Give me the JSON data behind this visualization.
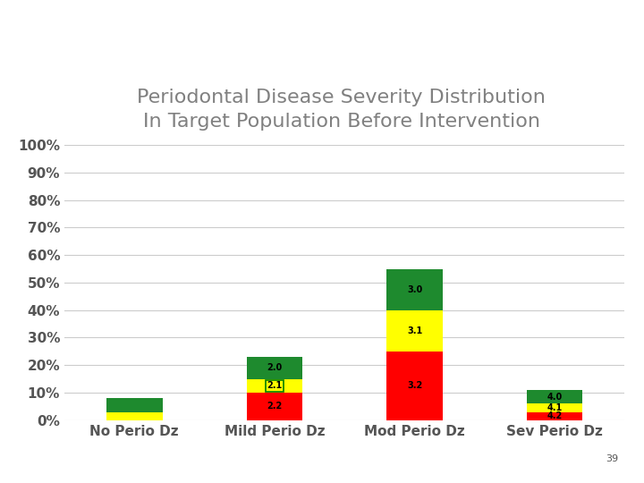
{
  "title": "Periodontal Disease Severity Distribution\nIn Target Population Before Intervention",
  "categories": [
    "No Perio Dz",
    "Mild Perio Dz",
    "Mod Perio Dz",
    "Sev Perio Dz"
  ],
  "segments": {
    "red": [
      0,
      10.0,
      25.0,
      3.0
    ],
    "yellow": [
      3.0,
      5.0,
      15.0,
      3.0
    ],
    "green": [
      5.0,
      8.0,
      15.0,
      5.0
    ]
  },
  "labels": {
    "red": [
      "",
      "2.2",
      "3.2",
      "4.2"
    ],
    "yellow": [
      "",
      "2.1",
      "3.1",
      "4.1"
    ],
    "green": [
      "",
      "2.0",
      "3.0",
      "4.0"
    ]
  },
  "colors": {
    "red": "#FF0000",
    "yellow": "#FFFF00",
    "green": "#1E8A2E"
  },
  "ylim": [
    0,
    100
  ],
  "yticks": [
    0,
    10,
    20,
    30,
    40,
    50,
    60,
    70,
    80,
    90,
    100
  ],
  "ytick_labels": [
    "0%",
    "10%",
    "20%",
    "30%",
    "40%",
    "50%",
    "60%",
    "70%",
    "80%",
    "90%",
    "100%"
  ],
  "background_color": "#FFFFFF",
  "title_color": "#808080",
  "title_fontsize": 16,
  "tick_label_fontsize": 11,
  "xlabel_fontsize": 11,
  "bar_label_fontsize": 7,
  "header_color_top": "#1F5FA6",
  "header_color_bottom": "#C9B800",
  "footer_color_top": "#C9B800",
  "footer_color_bottom": "#1F5FA6",
  "bar_width": 0.4,
  "page_number": "39"
}
